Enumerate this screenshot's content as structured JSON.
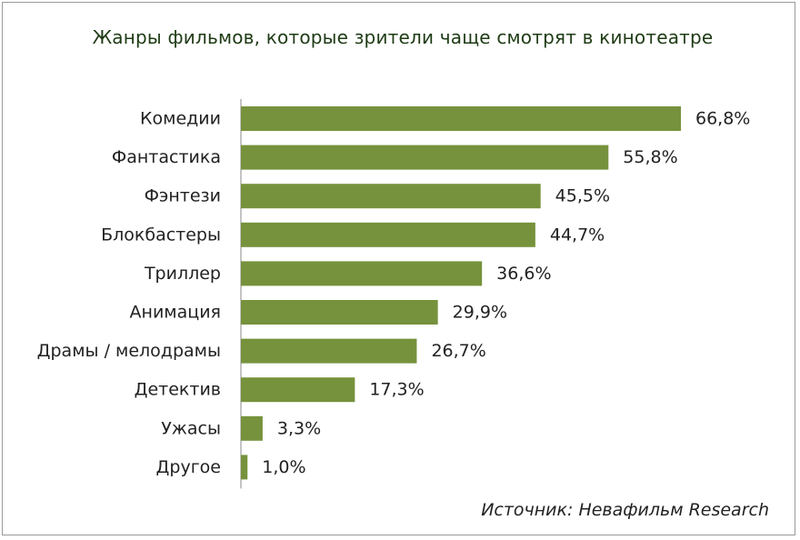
{
  "chart_data": {
    "type": "bar",
    "orientation": "horizontal",
    "title": "Жанры фильмов, которые зрители чаще смотрят в кинотеатре",
    "categories": [
      "Комедии",
      "Фантастика",
      "Фэнтези",
      "Блокбастеры",
      "Триллер",
      "Анимация",
      "Драмы / мелодрамы",
      "Детектив",
      "Ужасы",
      "Другое"
    ],
    "values": [
      66.8,
      55.8,
      45.5,
      44.7,
      36.6,
      29.9,
      26.7,
      17.3,
      3.3,
      1.0
    ],
    "value_labels": [
      "66,8%",
      "55,8%",
      "45,5%",
      "44,7%",
      "36,6%",
      "29,9%",
      "26,7%",
      "17,3%",
      "3,3%",
      "1,0%"
    ],
    "bar_color": "#76923c",
    "xlim": [
      0,
      68
    ],
    "grid": false,
    "legend": "none"
  },
  "source": "Источник: Невафильм Research"
}
